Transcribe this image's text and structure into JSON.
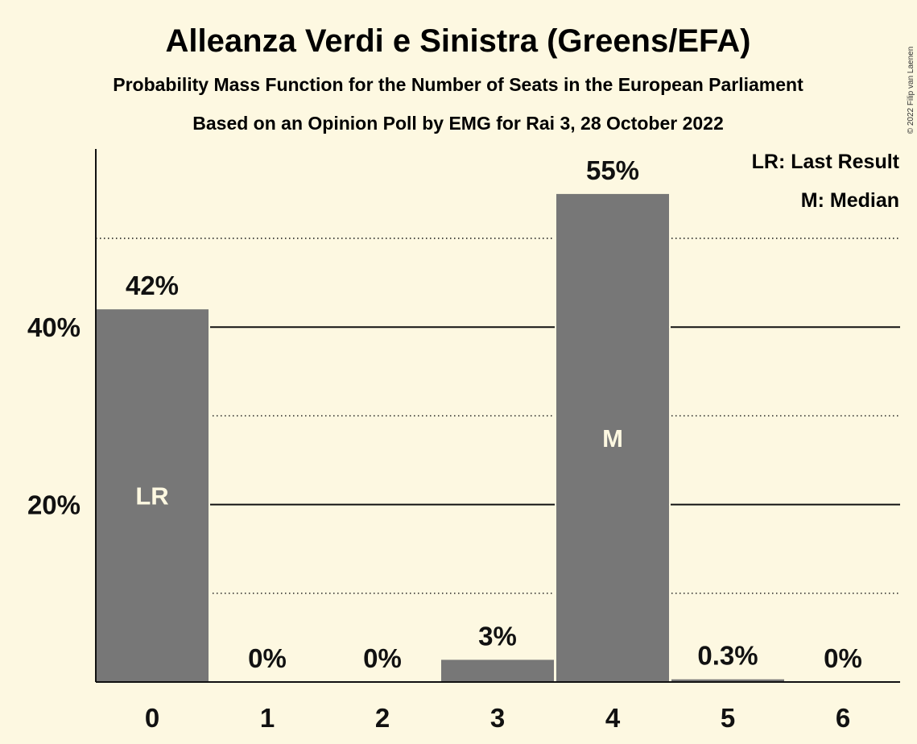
{
  "title": "Alleanza Verdi e Sinistra (Greens/EFA)",
  "subtitle": "Probability Mass Function for the Number of Seats in the European Parliament",
  "subtitle2": "Based on an Opinion Poll by EMG for Rai 3, 28 October 2022",
  "copyright": "© 2022 Filip van Laenen",
  "legend": {
    "lr": "LR: Last Result",
    "m": "M: Median"
  },
  "colors": {
    "background": "#fdf8e1",
    "bar": "#777777",
    "text": "#111111"
  },
  "chart_data": {
    "type": "bar",
    "categories": [
      "0",
      "1",
      "2",
      "3",
      "4",
      "5",
      "6"
    ],
    "values": [
      42,
      0,
      0,
      2.5,
      55,
      0.3,
      0
    ],
    "data_labels": [
      "42%",
      "0%",
      "0%",
      "3%",
      "55%",
      "0.3%",
      "0%"
    ],
    "bar_markers": [
      {
        "category": "0",
        "text": "LR"
      },
      {
        "category": "4",
        "text": "M"
      }
    ],
    "ylim": [
      0,
      60
    ],
    "yticks": [
      {
        "value": 20,
        "label": "20%"
      },
      {
        "value": 40,
        "label": "40%"
      }
    ],
    "major_grid": [
      20,
      40
    ],
    "minor_grid": [
      10,
      30,
      50
    ],
    "legend_position": "top-right"
  }
}
